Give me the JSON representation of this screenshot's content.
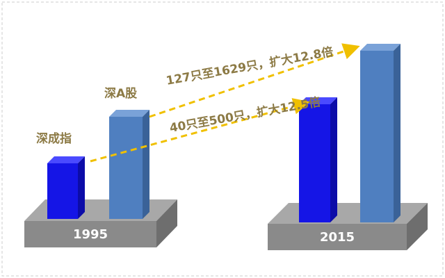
{
  "groups": [
    {
      "label": "1995"
    },
    {
      "label": "2015"
    }
  ],
  "series": [
    {
      "name": "深成指"
    },
    {
      "name": "深A股"
    }
  ],
  "annotations": [
    {
      "text": "127只至1629只，扩大12.8倍"
    },
    {
      "text": "40只至500只，扩大12.5倍"
    }
  ]
}
